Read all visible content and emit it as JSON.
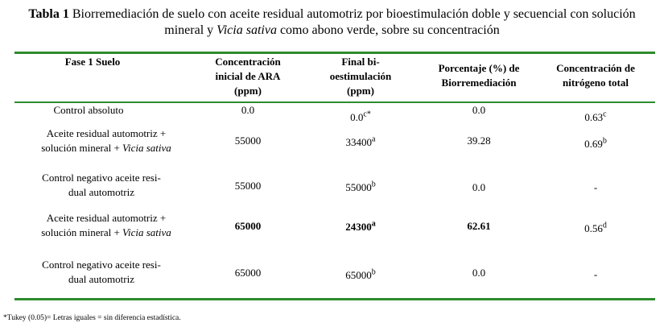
{
  "caption": {
    "label": "Tabla 1",
    "text_part1": " Biorremediación de suelo con aceite residual automotriz por bioestimulación doble y secuencial  con solución",
    "text_part2": "mineral y ",
    "species": "Vicia sativa",
    "text_part3": " como abono verde, sobre su concentración"
  },
  "table": {
    "headers": {
      "col1": "Fase 1 Suelo",
      "col2_line1": "Concentración",
      "col2_line2": "inicial de ARA",
      "col2_line3": "(ppm)",
      "col3_line1": "Final bi-",
      "col3_line2": "oestimulación",
      "col3_line3": "(ppm)",
      "col4_line1": "Porcentaje (%) de",
      "col4_line2": "Biorremediación",
      "col5_line1": "Concentración de",
      "col5_line2": "nitrógeno total"
    },
    "rows": [
      {
        "name_line1": "Control absoluto",
        "name_line2": "",
        "name_italic": "",
        "initial": "0.0",
        "final_value": "0.0",
        "final_sup": "c*",
        "percent": "0.0",
        "nitrogen_value": "0.63",
        "nitrogen_sup": "c"
      },
      {
        "name_line1": "Aceite residual automotriz +",
        "name_line2": "solución mineral + ",
        "name_italic": "Vicia sativa",
        "initial": "55000",
        "final_value": "33400",
        "final_sup": "a",
        "percent": "39.28",
        "nitrogen_value": "0.69",
        "nitrogen_sup": "b"
      },
      {
        "name_line1": "Control negativo aceite resi-",
        "name_line2": "dual automotriz",
        "name_italic": "",
        "initial": "55000",
        "final_value": "55000",
        "final_sup": "b",
        "percent": "0.0",
        "nitrogen_value": "-",
        "nitrogen_sup": ""
      },
      {
        "name_line1": "Aceite residual automotriz +",
        "name_line2": "solución mineral + ",
        "name_italic": "Vicia sativa",
        "initial": "65000",
        "final_value": "24300",
        "final_sup": "a",
        "percent": "62.61",
        "nitrogen_value": "0.56",
        "nitrogen_sup": "d"
      },
      {
        "name_line1": "Control negativo aceite resi-",
        "name_line2": "dual automotriz",
        "name_italic": "",
        "initial": "65000",
        "final_value": "65000",
        "final_sup": "b",
        "percent": "0.0",
        "nitrogen_value": "-",
        "nitrogen_sup": ""
      }
    ]
  },
  "footnote": "*Tukey (0.05)= Letras iguales = sin diferencia estadística.",
  "colors": {
    "rule": "#2e8b2e",
    "text": "#000000"
  }
}
